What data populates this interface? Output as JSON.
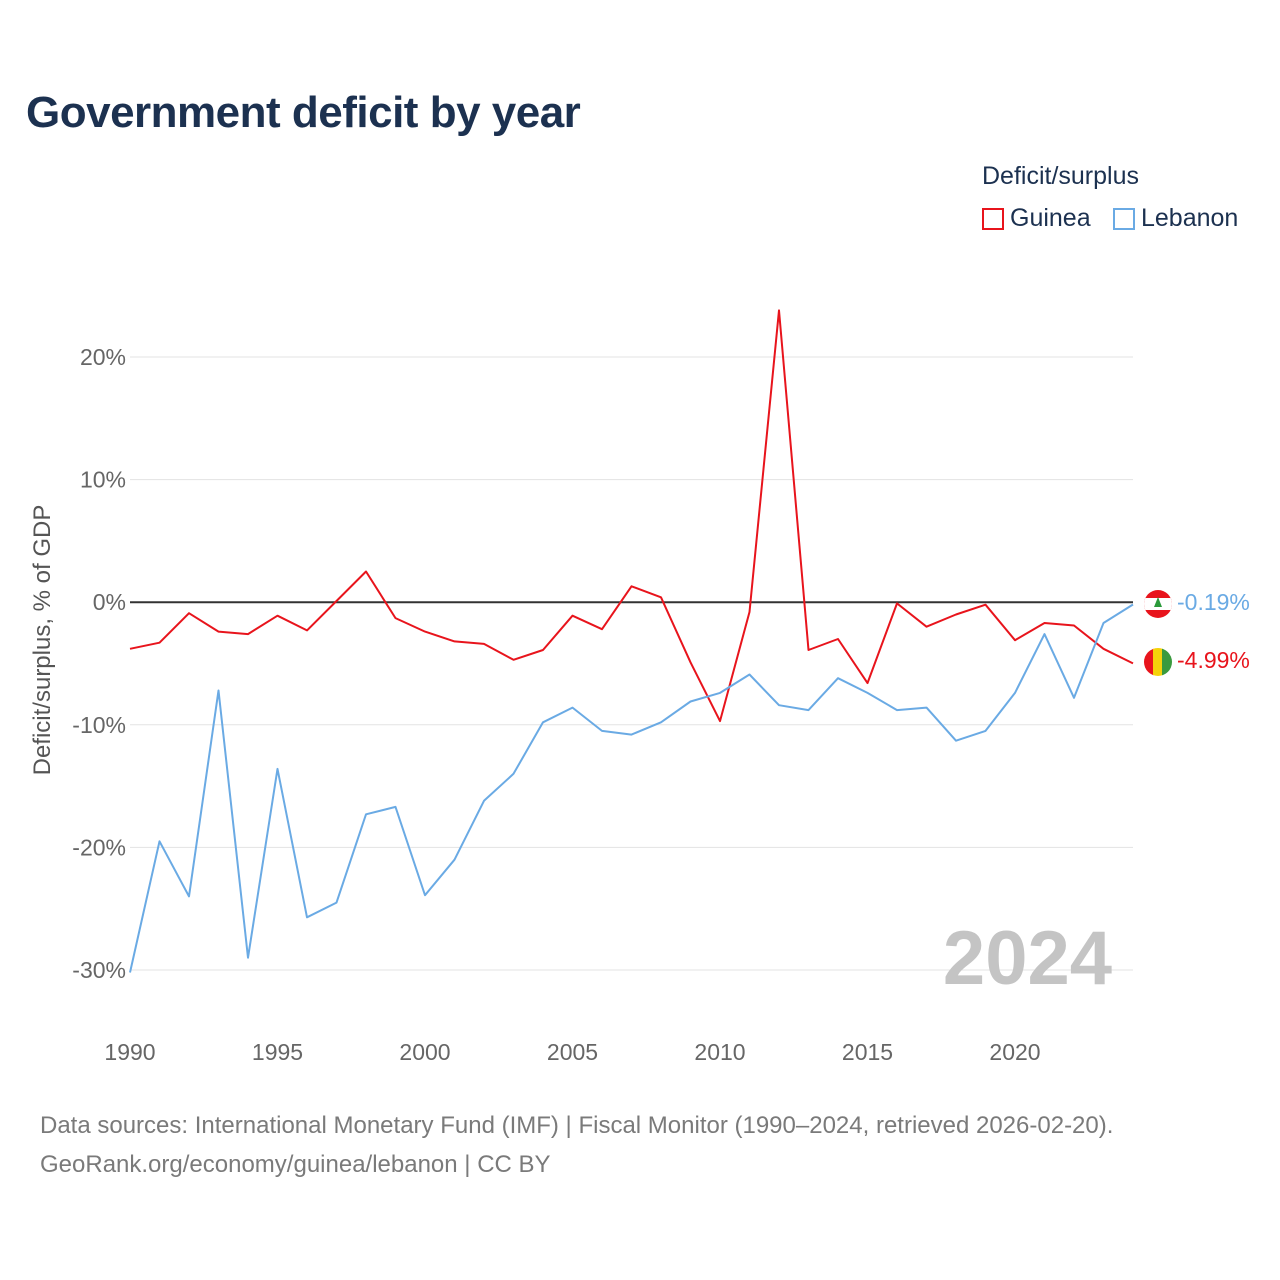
{
  "title": "Government deficit by year",
  "legend": {
    "title": "Deficit/surplus",
    "items": [
      {
        "name": "Guinea",
        "color": "#e8141c"
      },
      {
        "name": "Lebanon",
        "color": "#6aaae4"
      }
    ]
  },
  "year_watermark": "2024",
  "source": {
    "line1": "Data sources: International Monetary Fund (IMF) | Fiscal Monitor (1990–2024, retrieved 2026-02-20).",
    "line2": "GeoRank.org/economy/guinea/lebanon | CC BY"
  },
  "chart_data": {
    "type": "line",
    "title": "Government deficit by year",
    "xlabel": "",
    "ylabel": "Deficit/surplus, % of GDP",
    "xlim": [
      1990,
      2024
    ],
    "ylim": [
      -30,
      20
    ],
    "x_ticks": [
      1990,
      1995,
      2000,
      2005,
      2010,
      2015,
      2020
    ],
    "y_ticks": [
      20,
      10,
      0,
      -10,
      -20,
      -30
    ],
    "y_tick_labels": [
      "20%",
      "10%",
      "0%",
      "-10%",
      "-20%",
      "-30%"
    ],
    "x": [
      1990,
      1991,
      1992,
      1993,
      1994,
      1995,
      1996,
      1997,
      1998,
      1999,
      2000,
      2001,
      2002,
      2003,
      2004,
      2005,
      2006,
      2007,
      2008,
      2009,
      2010,
      2011,
      2012,
      2013,
      2014,
      2015,
      2016,
      2017,
      2018,
      2019,
      2020,
      2021,
      2022,
      2023,
      2024
    ],
    "series": [
      {
        "name": "Guinea",
        "color": "#e8141c",
        "end_label": "-4.99%",
        "values": [
          -3.8,
          -3.3,
          -0.9,
          -2.4,
          -2.6,
          -1.1,
          -2.3,
          0.1,
          2.5,
          -1.3,
          -2.4,
          -3.2,
          -3.4,
          -4.7,
          -3.9,
          -1.1,
          -2.2,
          1.3,
          0.4,
          -4.9,
          -9.7,
          -0.8,
          23.8,
          -3.9,
          -3.0,
          -6.6,
          -0.1,
          -2.0,
          -1.0,
          -0.2,
          -3.1,
          -1.7,
          -1.9,
          -3.8,
          -4.99
        ]
      },
      {
        "name": "Lebanon",
        "color": "#6aaae4",
        "end_label": "-0.19%",
        "values": [
          -30.2,
          -19.5,
          -24.0,
          -7.2,
          -29.0,
          -13.6,
          -25.7,
          -24.5,
          -17.3,
          -16.7,
          -23.9,
          -21.0,
          -16.2,
          -14.0,
          -9.8,
          -8.6,
          -10.5,
          -10.8,
          -9.8,
          -8.1,
          -7.4,
          -5.9,
          -8.4,
          -8.8,
          -6.2,
          -7.4,
          -8.8,
          -8.6,
          -11.3,
          -10.5,
          -7.4,
          -2.6,
          -7.8,
          -1.7,
          -0.19
        ]
      }
    ]
  }
}
